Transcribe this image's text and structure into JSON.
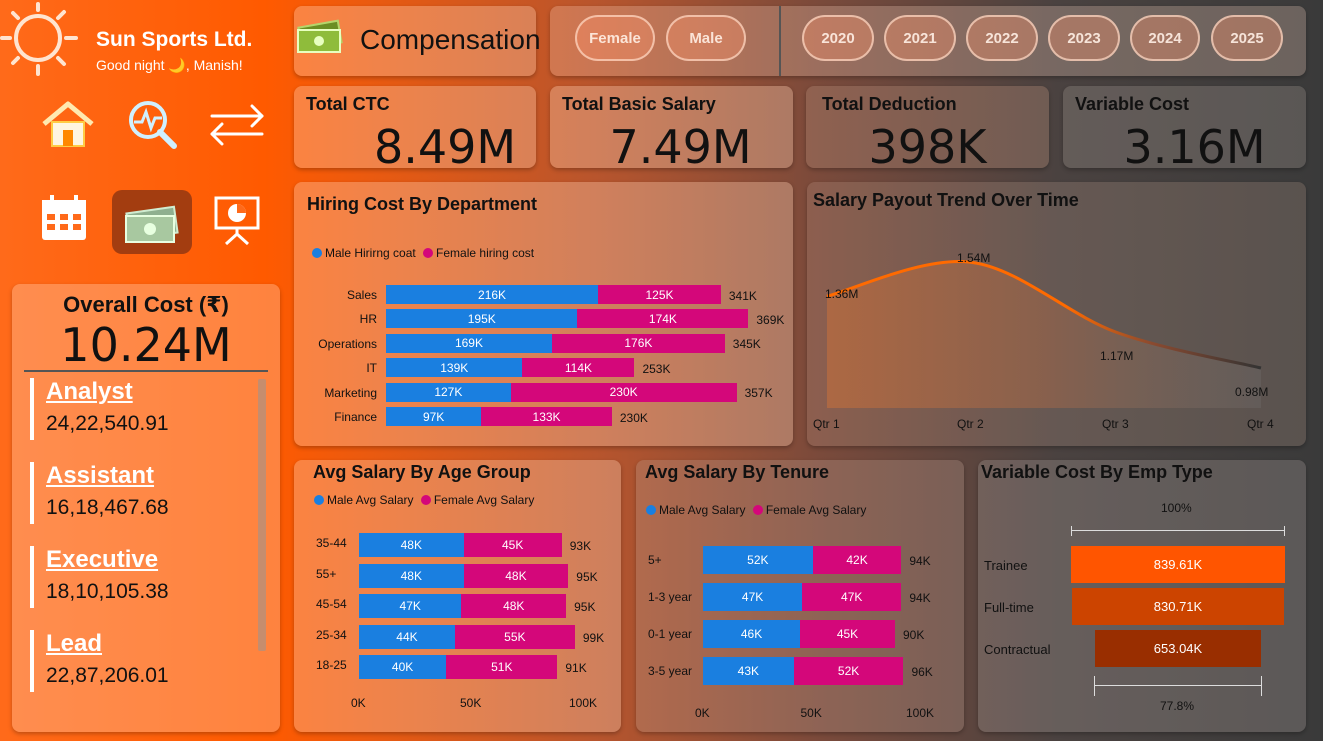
{
  "brand": {
    "name": "Sun Sports Ltd.",
    "greeting": "Good night 🌙, Manish!"
  },
  "page": {
    "title": "Compensation"
  },
  "filters": {
    "gender": [
      "Female",
      "Male"
    ],
    "years": [
      "2020",
      "2021",
      "2022",
      "2023",
      "2024",
      "2025"
    ]
  },
  "nav": [
    "home-icon",
    "analytics-icon",
    "swap-icon",
    "calendar-icon",
    "money-icon",
    "presentation-icon"
  ],
  "kpis": {
    "ctc": {
      "label": "Total CTC",
      "value": "8.49M"
    },
    "basic": {
      "label": "Total Basic Salary",
      "value": "7.49M"
    },
    "deduction": {
      "label": "Total Deduction",
      "value": "398K"
    },
    "variable": {
      "label": "Variable Cost",
      "value": "3.16M"
    }
  },
  "overall": {
    "title": "Overall Cost (₹)",
    "value": "10.24M",
    "roles": [
      {
        "name": "Analyst",
        "value": "24,22,540.91"
      },
      {
        "name": "Assistant",
        "value": "16,18,467.68"
      },
      {
        "name": "Executive",
        "value": "18,10,105.38"
      },
      {
        "name": "Lead",
        "value": "22,87,206.01"
      }
    ]
  },
  "colors": {
    "male": "#1a7fe0",
    "female": "#d4077a",
    "trainee": "#ff5500",
    "fulltime": "#cc4400",
    "contractual": "#992e00",
    "line": "#ff6a00"
  },
  "chart_data": [
    {
      "type": "bar",
      "title": "Hiring Cost By Department",
      "legend": [
        "Male Hirirng coat",
        "Female hiring cost"
      ],
      "categories": [
        "Sales",
        "HR",
        "Operations",
        "IT",
        "Marketing",
        "Finance"
      ],
      "series": [
        {
          "name": "Male Hirirng coat",
          "values": [
            216,
            195,
            169,
            139,
            127,
            97
          ],
          "labels": [
            "216K",
            "195K",
            "169K",
            "139K",
            "127K",
            "97K"
          ]
        },
        {
          "name": "Female hiring cost",
          "values": [
            125,
            174,
            176,
            114,
            230,
            133
          ],
          "labels": [
            "125K",
            "174K",
            "176K",
            "114K",
            "230K",
            "133K"
          ]
        }
      ],
      "totals": [
        "341K",
        "369K",
        "345K",
        "253K",
        "357K",
        "230K"
      ]
    },
    {
      "type": "area",
      "title": "Salary Payout Trend Over Time",
      "categories": [
        "Qtr 1",
        "Qtr 2",
        "Qtr 3",
        "Qtr 4"
      ],
      "values": [
        1.36,
        1.54,
        1.17,
        0.98
      ],
      "labels": [
        "1.36M",
        "1.54M",
        "1.17M",
        "0.98M"
      ]
    },
    {
      "type": "bar",
      "title": "Avg Salary By Age Group",
      "legend": [
        "Male Avg Salary",
        "Female Avg Salary"
      ],
      "categories": [
        "35-44",
        "55+",
        "45-54",
        "25-34",
        "18-25"
      ],
      "series": [
        {
          "name": "Male Avg Salary",
          "values": [
            48,
            48,
            47,
            44,
            40
          ],
          "labels": [
            "48K",
            "48K",
            "47K",
            "44K",
            "40K"
          ]
        },
        {
          "name": "Female Avg Salary",
          "values": [
            45,
            48,
            48,
            55,
            51
          ],
          "labels": [
            "45K",
            "48K",
            "48K",
            "55K",
            "51K"
          ]
        }
      ],
      "totals": [
        "93K",
        "95K",
        "95K",
        "99K",
        "91K"
      ],
      "xticks": [
        "0K",
        "50K",
        "100K"
      ]
    },
    {
      "type": "bar",
      "title": "Avg Salary By Tenure",
      "legend": [
        "Male Avg Salary",
        "Female Avg Salary"
      ],
      "categories": [
        "5+",
        "1-3 year",
        "0-1 year",
        "3-5 year"
      ],
      "series": [
        {
          "name": "Male Avg Salary",
          "values": [
            52,
            47,
            46,
            43
          ],
          "labels": [
            "52K",
            "47K",
            "46K",
            "43K"
          ]
        },
        {
          "name": "Female Avg Salary",
          "values": [
            42,
            47,
            45,
            52
          ],
          "labels": [
            "42K",
            "47K",
            "45K",
            "52K"
          ]
        }
      ],
      "totals": [
        "94K",
        "94K",
        "90K",
        "96K"
      ],
      "xticks": [
        "0K",
        "50K",
        "100K"
      ]
    },
    {
      "type": "bar",
      "title": "Variable Cost By Emp Type",
      "categories": [
        "Trainee",
        "Full-time",
        "Contractual"
      ],
      "values": [
        839.61,
        830.71,
        653.04
      ],
      "labels": [
        "839.61K",
        "830.71K",
        "653.04K"
      ],
      "top_label": "100%",
      "bottom_label": "77.8%"
    }
  ]
}
